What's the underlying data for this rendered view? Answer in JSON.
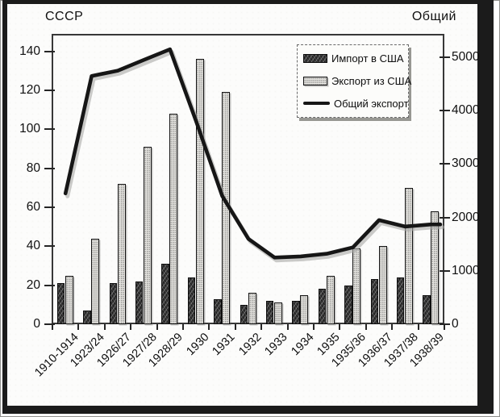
{
  "legend": {
    "items": [
      {
        "id": "import",
        "label": "Импорт в США",
        "swatch": "dark-hatched-bar"
      },
      {
        "id": "export",
        "label": "Экспорт из США",
        "swatch": "light-stippled-bar"
      },
      {
        "id": "total",
        "label": "Общий экспорт",
        "swatch": "thick-black-line"
      }
    ]
  },
  "chart_data": {
    "type": "bar",
    "combo": "grouped-bars-with-line-overlay",
    "title": "",
    "categories": [
      "1910-1914",
      "1923/24",
      "1926/27",
      "1927/28",
      "1928/29",
      "1930",
      "1931",
      "1932",
      "1933",
      "1934",
      "1935",
      "1935/36",
      "1936/37",
      "1937/38",
      "1938/39"
    ],
    "series": [
      {
        "name": "Импорт в США",
        "type": "bar",
        "axis": "left",
        "values": [
          21,
          7,
          21,
          22,
          31,
          24,
          13,
          10,
          12,
          12,
          18,
          20,
          23,
          24,
          15
        ]
      },
      {
        "name": "Экспорт из США",
        "type": "bar",
        "axis": "left",
        "values": [
          25,
          44,
          72,
          91,
          108,
          136,
          119,
          16,
          11,
          15,
          25,
          39,
          40,
          70,
          58
        ]
      },
      {
        "name": "Общий экспорт",
        "type": "line",
        "axis": "right",
        "values": [
          2450,
          4650,
          4750,
          4950,
          5150,
          3800,
          2400,
          1600,
          1250,
          1270,
          1320,
          1440,
          1950,
          1830,
          1870
        ]
      }
    ],
    "left_axis": {
      "title": "СССР",
      "ticks": [
        0,
        20,
        40,
        60,
        80,
        100,
        120,
        140
      ],
      "range": [
        0,
        149
      ]
    },
    "right_axis": {
      "title": "Общий",
      "ticks": [
        0,
        1000,
        2000,
        3000,
        4000,
        5000
      ],
      "range": [
        0,
        5440
      ]
    },
    "grid": false,
    "legend_position": "top-right-inside",
    "colors": {
      "import_bar": "#3b3b3b",
      "export_bar": "#e4e3df",
      "total_line": "#161616",
      "frame": "#1b1b1b",
      "background": "#fcfcfb"
    }
  }
}
